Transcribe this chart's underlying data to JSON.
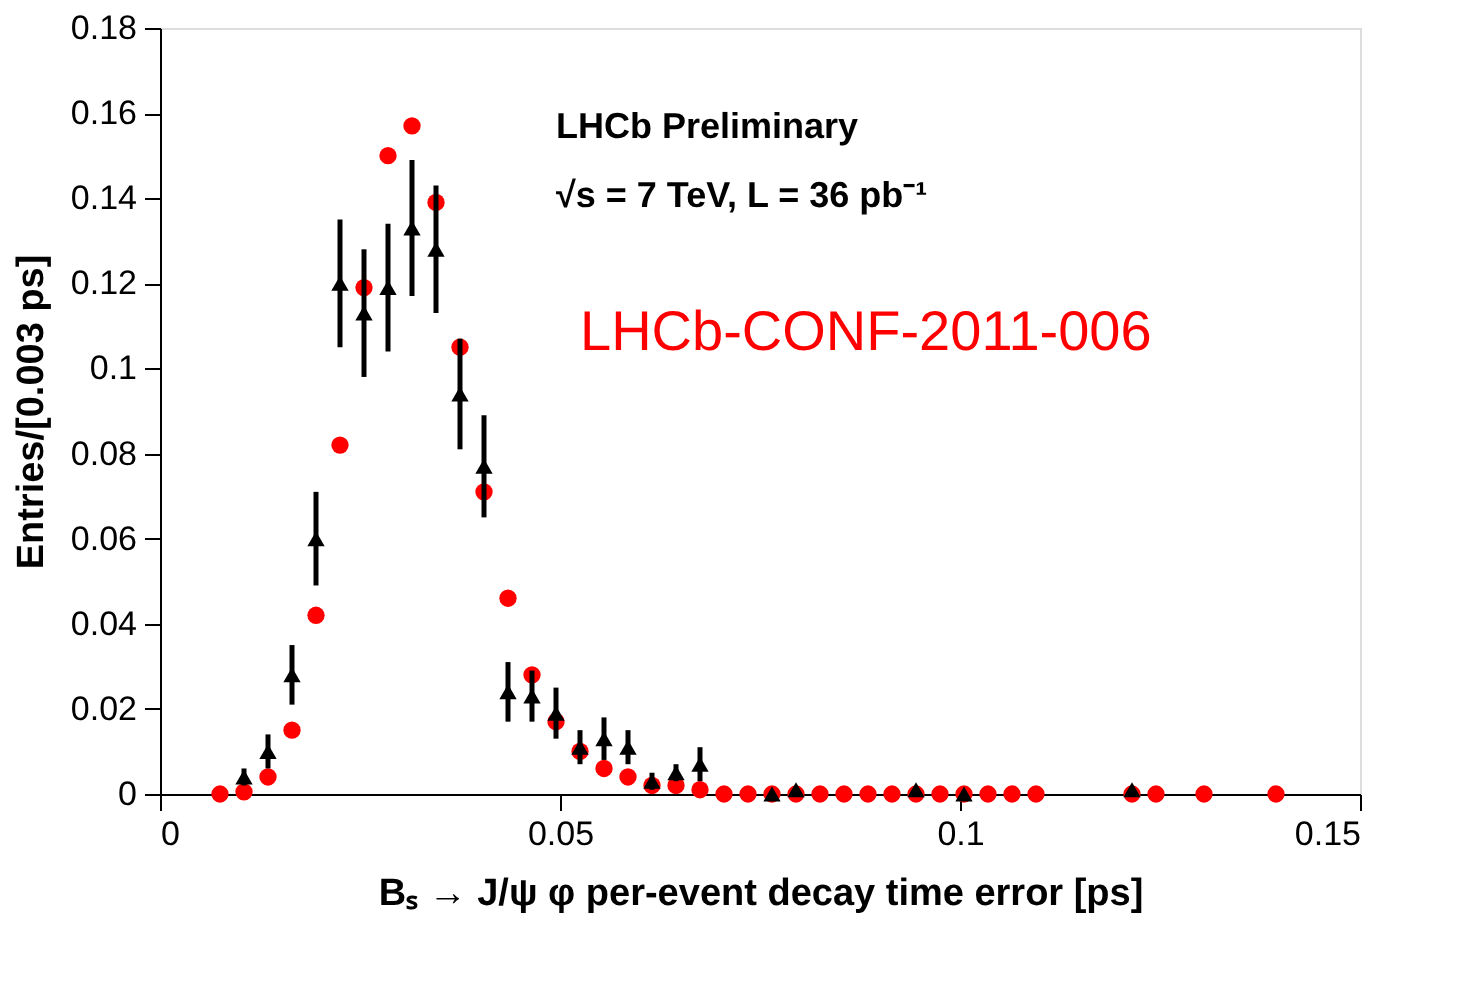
{
  "chart_data": {
    "type": "scatter",
    "xlabel": "Bₛ → J/ψ φ per-event decay time error [ps]",
    "ylabel": "Entries/[0.003 ps]",
    "annotations": [
      "LHCb Preliminary",
      "√s = 7 TeV, L = 36 pb⁻¹",
      "LHCb-CONF-2011-006"
    ],
    "xlim": [
      0,
      0.15
    ],
    "xticks": [
      0,
      0.05,
      0.1,
      0.15
    ],
    "ylim": [
      0,
      0.18
    ],
    "yticks": [
      0,
      0.02,
      0.04,
      0.06,
      0.08,
      0.1,
      0.12,
      0.14,
      0.16,
      0.18
    ],
    "grid": false,
    "legend": false,
    "series": [
      {
        "color": "#ff0000",
        "marker": "circle",
        "x": [
          0.0075,
          0.0105,
          0.0135,
          0.0165,
          0.0195,
          0.0225,
          0.0255,
          0.0285,
          0.0315,
          0.0345,
          0.0375,
          0.0405,
          0.0435,
          0.0465,
          0.0495,
          0.0525,
          0.0555,
          0.0585,
          0.0615,
          0.0645,
          0.0675,
          0.0705,
          0.0735,
          0.0765,
          0.0795,
          0.0825,
          0.0855,
          0.0885,
          0.0915,
          0.0945,
          0.0975,
          0.1005,
          0.1035,
          0.1065,
          0.1095,
          0.1215,
          0.1245,
          0.1305,
          0.1395
        ],
        "values": [
          0,
          0.0005,
          0.004,
          0.015,
          0.042,
          0.082,
          0.119,
          0.15,
          0.157,
          0.139,
          0.105,
          0.071,
          0.046,
          0.028,
          0.017,
          0.01,
          0.006,
          0.004,
          0.002,
          0.002,
          0.001,
          0,
          0,
          0,
          0,
          0,
          0,
          0,
          0,
          0,
          0,
          0,
          0,
          0,
          0,
          0,
          0,
          0,
          0
        ]
      },
      {
        "color": "#000000",
        "marker": "triangle",
        "x": [
          0.0105,
          0.0135,
          0.0165,
          0.0195,
          0.0225,
          0.0255,
          0.0285,
          0.0315,
          0.0345,
          0.0375,
          0.0405,
          0.0435,
          0.0465,
          0.0495,
          0.0525,
          0.0555,
          0.0585,
          0.0615,
          0.0645,
          0.0675,
          0.0765,
          0.0795,
          0.0945,
          0.1005,
          0.1215
        ],
        "values": [
          0.004,
          0.01,
          0.028,
          0.06,
          0.12,
          0.113,
          0.119,
          0.133,
          0.128,
          0.094,
          0.077,
          0.024,
          0.023,
          0.019,
          0.011,
          0.013,
          0.011,
          0.003,
          0.005,
          0.007,
          0,
          0.001,
          0.001,
          0,
          0.001
        ],
        "errors": [
          0.002,
          0.004,
          0.007,
          0.011,
          0.015,
          0.015,
          0.015,
          0.016,
          0.015,
          0.013,
          0.012,
          0.007,
          0.006,
          0.006,
          0.004,
          0.005,
          0.004,
          0.002,
          0.002,
          0.004,
          null,
          null,
          null,
          null,
          null
        ]
      }
    ]
  }
}
